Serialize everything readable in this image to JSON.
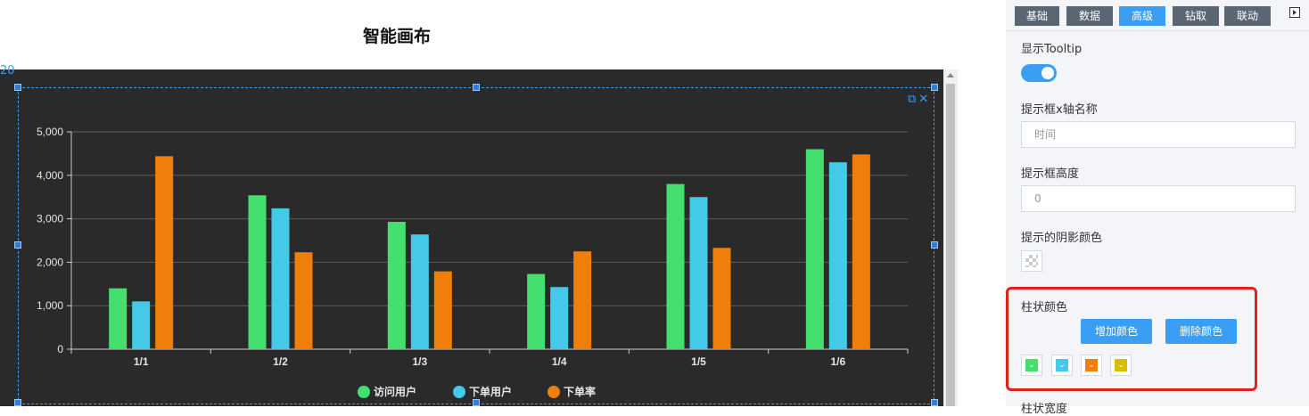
{
  "page_title": "智能画布",
  "canvas": {
    "corner_label": "20"
  },
  "chart_data": {
    "type": "bar",
    "categories": [
      "1/1",
      "1/2",
      "1/3",
      "1/4",
      "1/5",
      "1/6"
    ],
    "series": [
      {
        "name": "访问用户",
        "color": "#43e06f",
        "values": [
          1400,
          3540,
          2930,
          1730,
          3800,
          4600
        ]
      },
      {
        "name": "下单用户",
        "color": "#45c9e8",
        "values": [
          1100,
          3240,
          2640,
          1430,
          3500,
          4300
        ]
      },
      {
        "name": "下单率",
        "color": "#ef7f0a",
        "values": [
          4440,
          2230,
          1790,
          2250,
          2330,
          4480
        ]
      }
    ],
    "yticks": [
      "0",
      "1,000",
      "2,000",
      "3,000",
      "4,000",
      "5,000"
    ],
    "ylim": [
      0,
      5000
    ],
    "grid": true,
    "legend_position": "bottom"
  },
  "panel": {
    "tabs": [
      {
        "label": "基础",
        "active": false
      },
      {
        "label": "数据",
        "active": false
      },
      {
        "label": "高级",
        "active": true
      },
      {
        "label": "钻取",
        "active": false
      },
      {
        "label": "联动",
        "active": false
      }
    ],
    "tooltip_label": "显示Tooltip",
    "tooltip_enabled": true,
    "x_name_label": "提示框x轴名称",
    "x_name_value": "时间",
    "height_label": "提示框高度",
    "height_value": "0",
    "shadow_label": "提示的阴影颜色",
    "bar_color_label": "柱状颜色",
    "add_color_label": "增加颜色",
    "remove_color_label": "删除颜色",
    "bar_colors": [
      "#43e06f",
      "#45c9e8",
      "#ef7f0a",
      "#d6c000"
    ],
    "bar_width_label": "柱状宽度"
  }
}
